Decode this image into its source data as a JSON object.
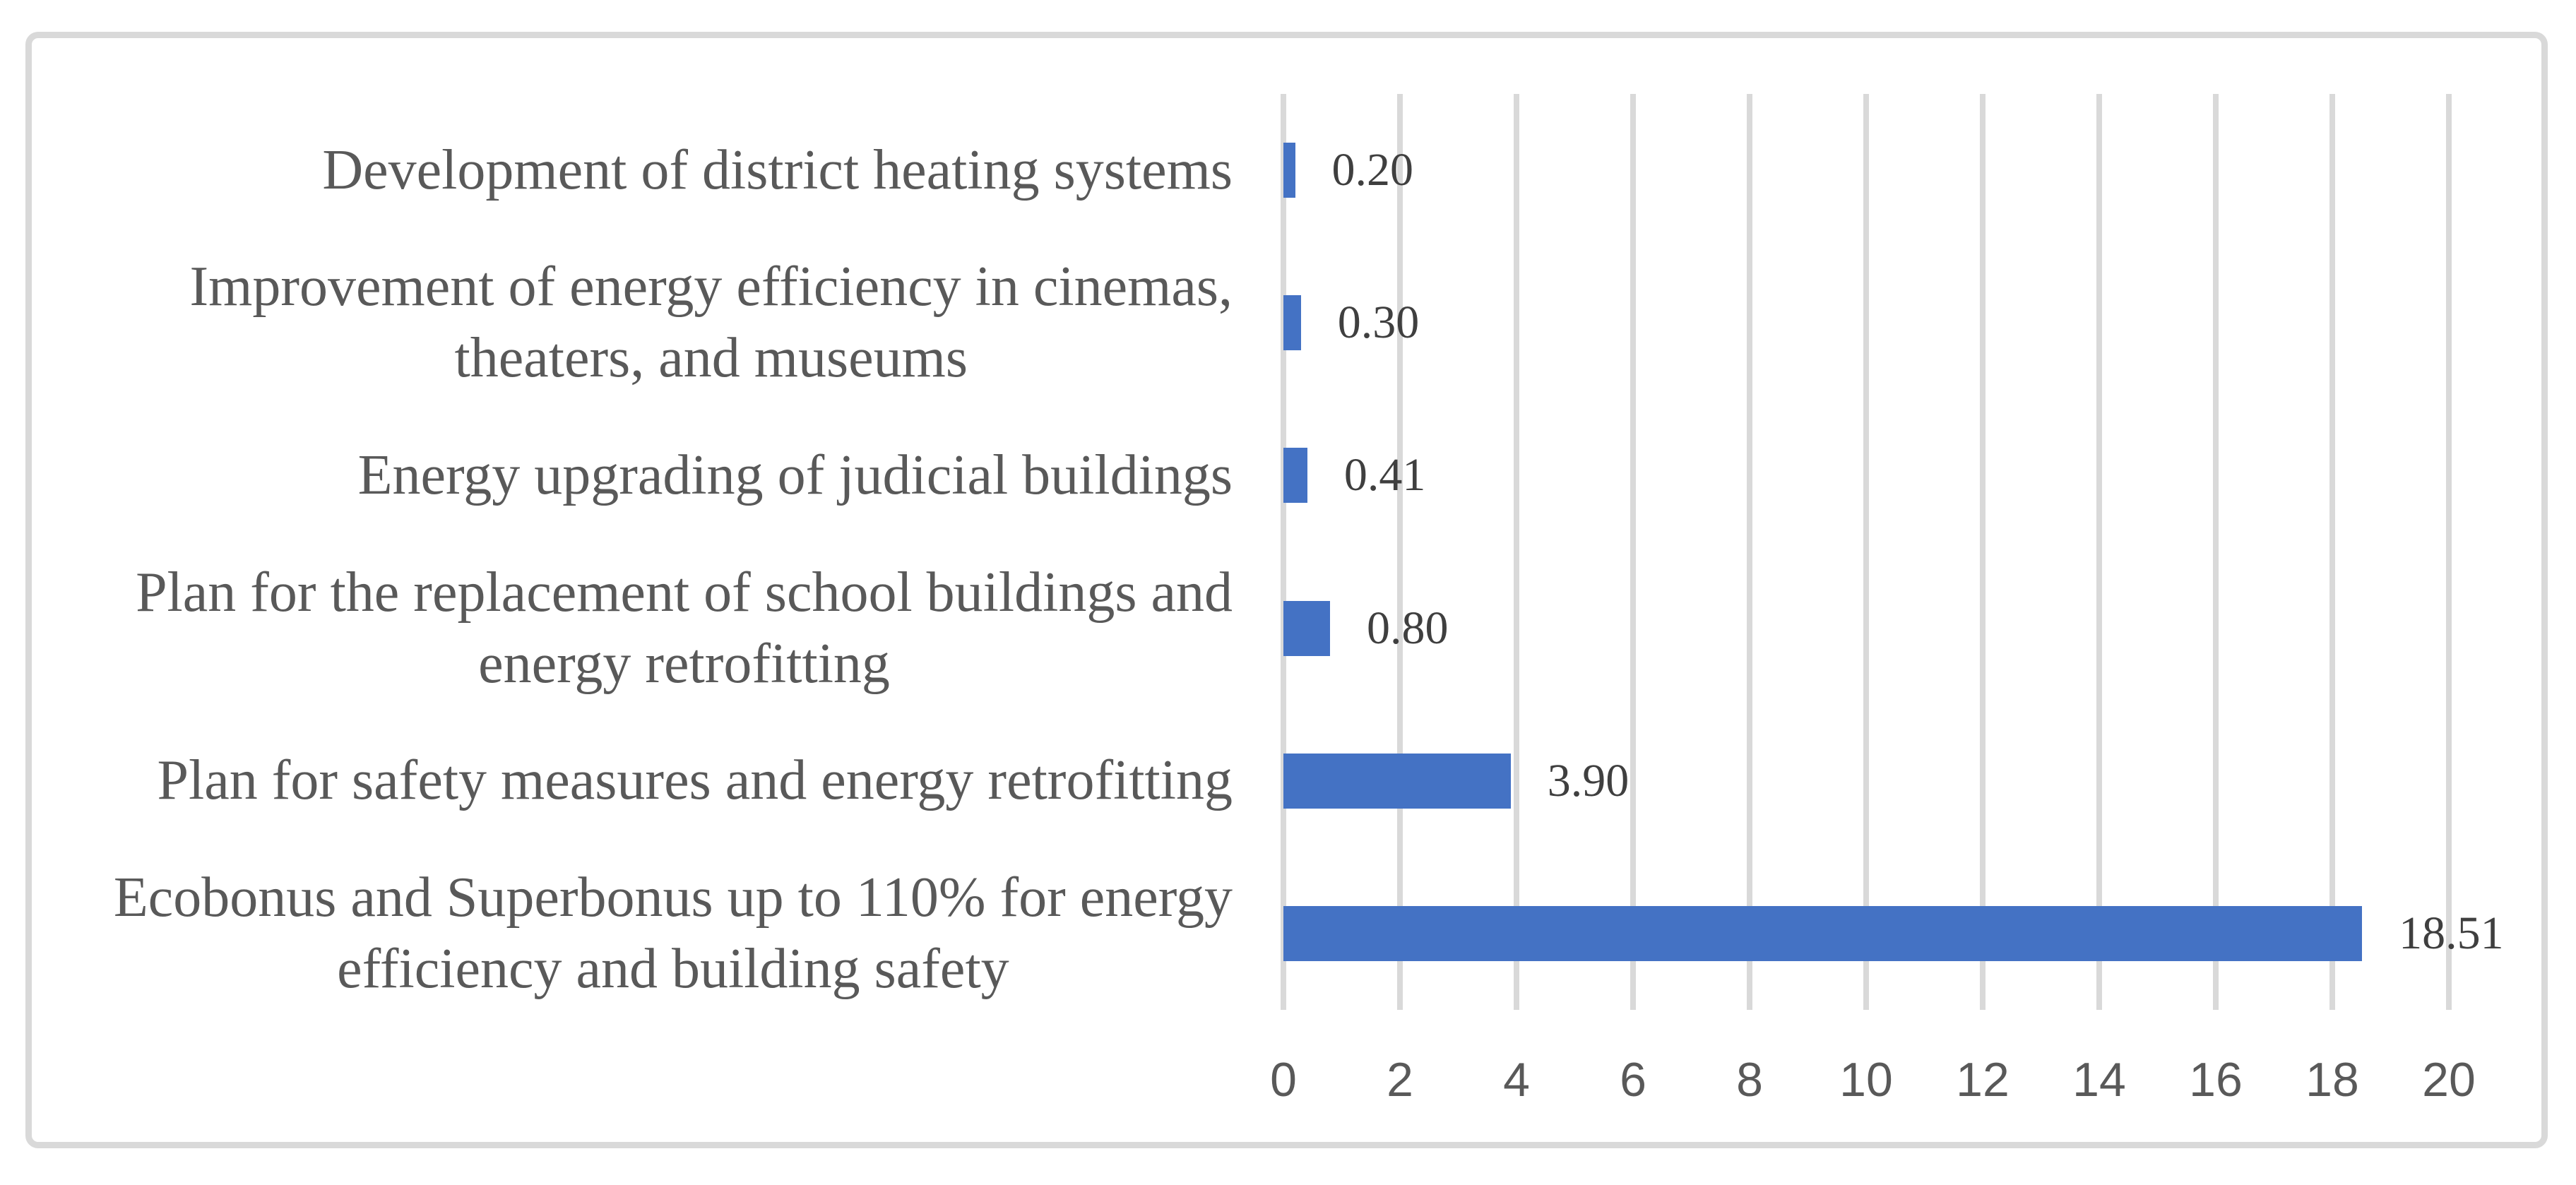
{
  "chart_data": {
    "type": "bar",
    "orientation": "horizontal",
    "title": "",
    "xlabel": "",
    "ylabel": "",
    "categories": [
      [
        "Development of district heating systems"
      ],
      [
        "Improvement of energy efficiency in cinemas,",
        "theaters, and museums"
      ],
      [
        "Energy upgrading of judicial buildings"
      ],
      [
        "Plan for the replacement of school buildings and",
        "energy retrofitting"
      ],
      [
        "Plan for safety measures and energy retrofitting"
      ],
      [
        "Ecobonus and Superbonus up to 110% for energy",
        "efficiency and building safety"
      ]
    ],
    "values": [
      0.2,
      0.3,
      0.41,
      0.8,
      3.9,
      18.51
    ],
    "value_labels": [
      "0.20",
      "0.30",
      "0.41",
      "0.80",
      "3.90",
      "18.51"
    ],
    "xlim": [
      0,
      20
    ],
    "x_ticks": [
      "0",
      "2",
      "4",
      "6",
      "8",
      "10",
      "12",
      "14",
      "16",
      "18",
      "20"
    ],
    "grid": true,
    "legend": false,
    "colors": {
      "bar": "#4472C4",
      "gridline": "#D9D9D9",
      "border": "#D9D9D9",
      "category_text": "#595959",
      "tick_text": "#595959",
      "value_text": "#3F3F3F",
      "background": "#FFFFFF"
    }
  }
}
